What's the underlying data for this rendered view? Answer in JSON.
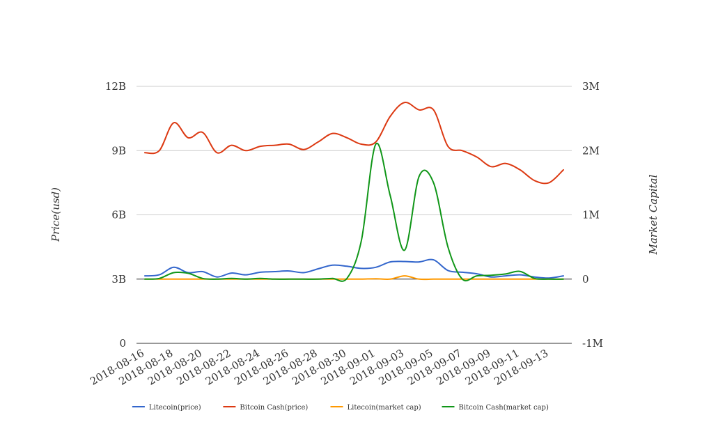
{
  "chart_data": {
    "type": "line",
    "x": [
      "2018-08-16",
      "2018-08-17",
      "2018-08-18",
      "2018-08-19",
      "2018-08-20",
      "2018-08-21",
      "2018-08-22",
      "2018-08-23",
      "2018-08-24",
      "2018-08-25",
      "2018-08-26",
      "2018-08-27",
      "2018-08-28",
      "2018-08-29",
      "2018-08-30",
      "2018-08-31",
      "2018-09-01",
      "2018-09-02",
      "2018-09-03",
      "2018-09-04",
      "2018-09-05",
      "2018-09-06",
      "2018-09-07",
      "2018-09-08",
      "2018-09-09",
      "2018-09-10",
      "2018-09-11",
      "2018-09-12",
      "2018-09-13",
      "2018-09-14"
    ],
    "x_tick_labels": [
      "2018-08-16",
      "2018-08-18",
      "2018-08-20",
      "2018-08-22",
      "2018-08-24",
      "2018-08-26",
      "2018-08-28",
      "2018-08-30",
      "2018-09-01",
      "2018-09-03",
      "2018-09-05",
      "2018-09-07",
      "2018-09-09",
      "2018-09-11",
      "2018-09-13"
    ],
    "y_left": {
      "title": "Price(usd)",
      "range": [
        0,
        12000000000
      ],
      "ticks": [
        0,
        3000000000,
        6000000000,
        9000000000,
        12000000000
      ],
      "tick_labels": [
        "0",
        "3B",
        "6B",
        "9B",
        "12B"
      ]
    },
    "y_right": {
      "title": "Market Capital",
      "range": [
        -1000000,
        3000000
      ],
      "ticks": [
        -1000000,
        0,
        1000000,
        2000000,
        3000000
      ],
      "tick_labels": [
        "-1M",
        "0",
        "1M",
        "2M",
        "3M"
      ]
    },
    "grid": true,
    "legend_position": "bottom",
    "series": [
      {
        "name": "Litecoin(price)",
        "axis": "left",
        "color": "#3366cc",
        "values": [
          3150000000,
          3200000000,
          3550000000,
          3300000000,
          3350000000,
          3100000000,
          3280000000,
          3200000000,
          3320000000,
          3350000000,
          3380000000,
          3300000000,
          3480000000,
          3650000000,
          3600000000,
          3500000000,
          3550000000,
          3800000000,
          3820000000,
          3800000000,
          3900000000,
          3400000000,
          3320000000,
          3250000000,
          3100000000,
          3150000000,
          3200000000,
          3100000000,
          3050000000,
          3150000000
        ]
      },
      {
        "name": "Bitcoin Cash(price)",
        "axis": "left",
        "color": "#dc3912",
        "values": [
          8900000000,
          9000000000,
          10300000000,
          9600000000,
          9850000000,
          8900000000,
          9250000000,
          9000000000,
          9200000000,
          9250000000,
          9300000000,
          9050000000,
          9400000000,
          9800000000,
          9600000000,
          9300000000,
          9400000000,
          10600000000,
          11250000000,
          10900000000,
          10900000000,
          9200000000,
          9000000000,
          8700000000,
          8250000000,
          8400000000,
          8100000000,
          7600000000,
          7500000000,
          8100000000
        ]
      },
      {
        "name": "Litecoin(market cap)",
        "axis": "right",
        "color": "#ff9900",
        "values": [
          0,
          0,
          0,
          0,
          0,
          0,
          0,
          0,
          0,
          0,
          0,
          0,
          0,
          0,
          0,
          0,
          5000,
          0,
          50000,
          0,
          0,
          0,
          0,
          0,
          0,
          0,
          0,
          0,
          0,
          0
        ]
      },
      {
        "name": "Bitcoin Cash(market cap)",
        "axis": "right",
        "color": "#109618",
        "values": [
          0,
          10000,
          100000,
          90000,
          10000,
          0,
          10000,
          0,
          10000,
          0,
          0,
          0,
          0,
          10000,
          10000,
          600000,
          2100000,
          1300000,
          450000,
          1600000,
          1500000,
          500000,
          0,
          50000,
          60000,
          80000,
          120000,
          10000,
          0,
          0
        ]
      }
    ]
  }
}
